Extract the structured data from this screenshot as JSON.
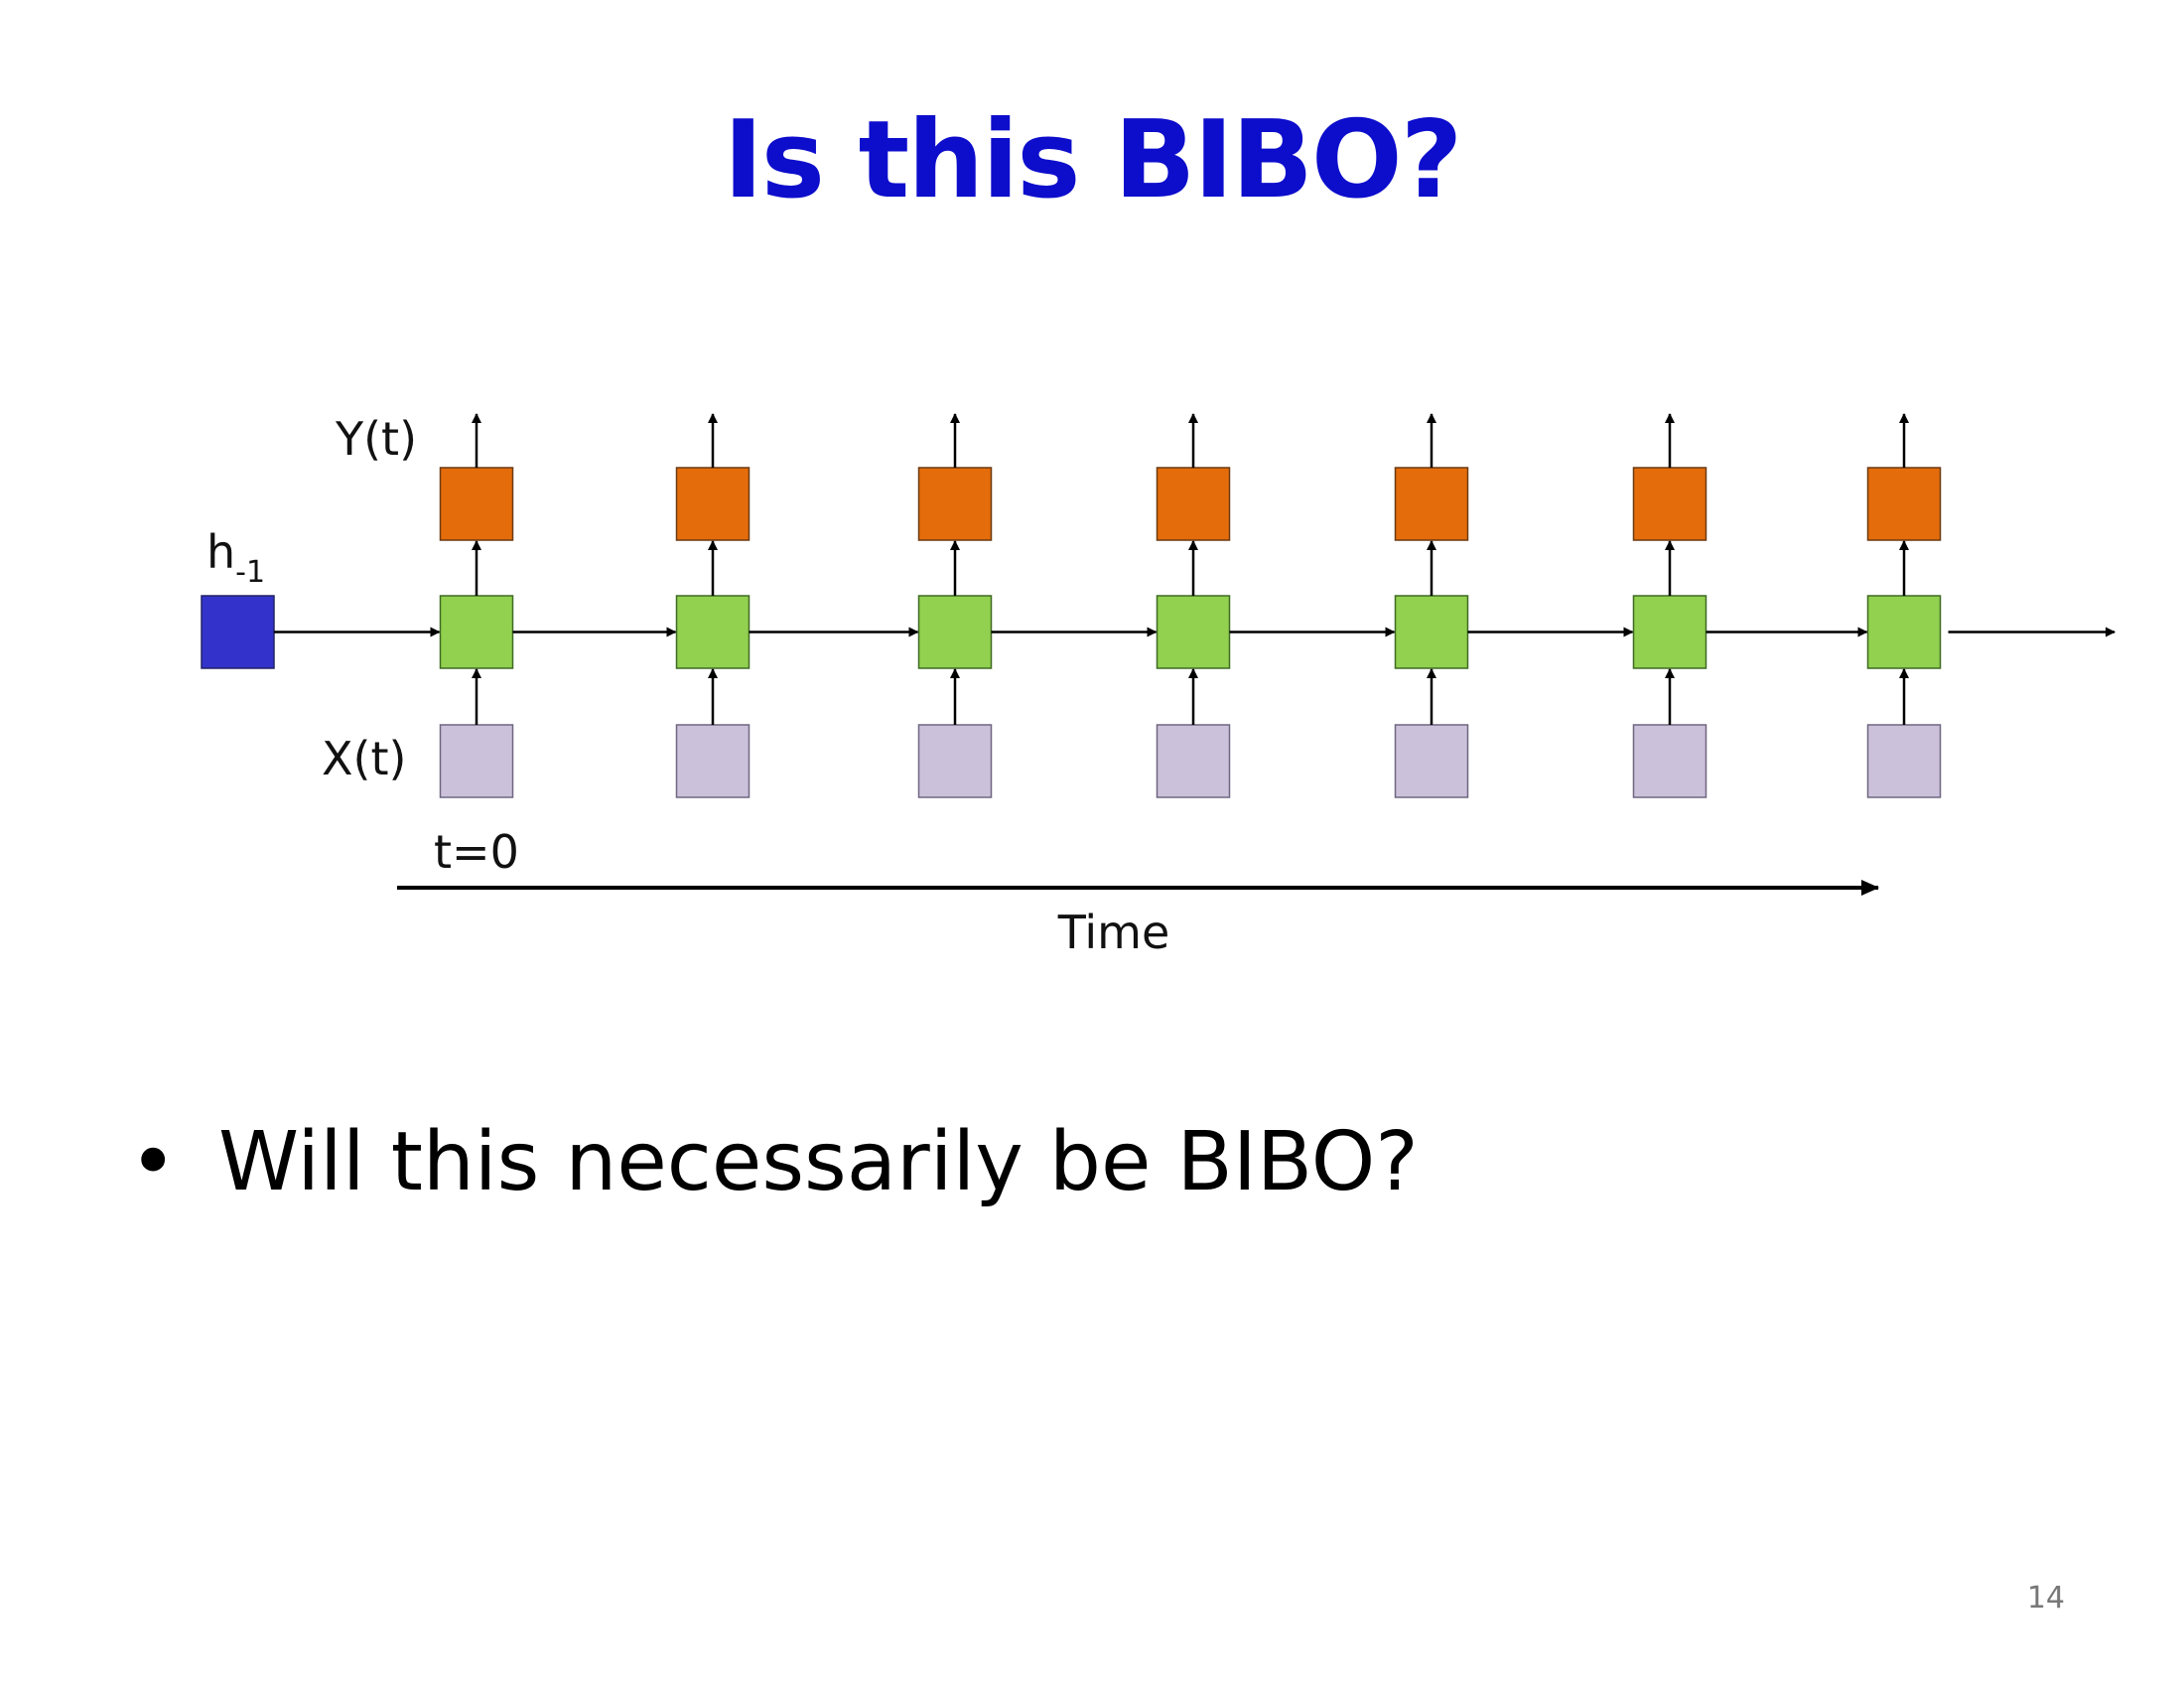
{
  "slide": {
    "title": "Is this BIBO?",
    "bullets": [
      {
        "symbol": "•",
        "text": "Will this necessarily be BIBO?"
      }
    ],
    "page_number": "14"
  },
  "diagram": {
    "labels": {
      "output": "Y(t)",
      "input": "X(t)",
      "initial_state": "h",
      "initial_state_sub": "-1",
      "start_time": "t=0",
      "time_axis": "Time"
    },
    "timesteps": 7,
    "colors": {
      "initial_state": "#3333cc",
      "hidden": "#92d050",
      "output": "#e46c0a",
      "input": "#ccc1da",
      "arrow": "#000000",
      "title": "#0d0dcc"
    }
  }
}
